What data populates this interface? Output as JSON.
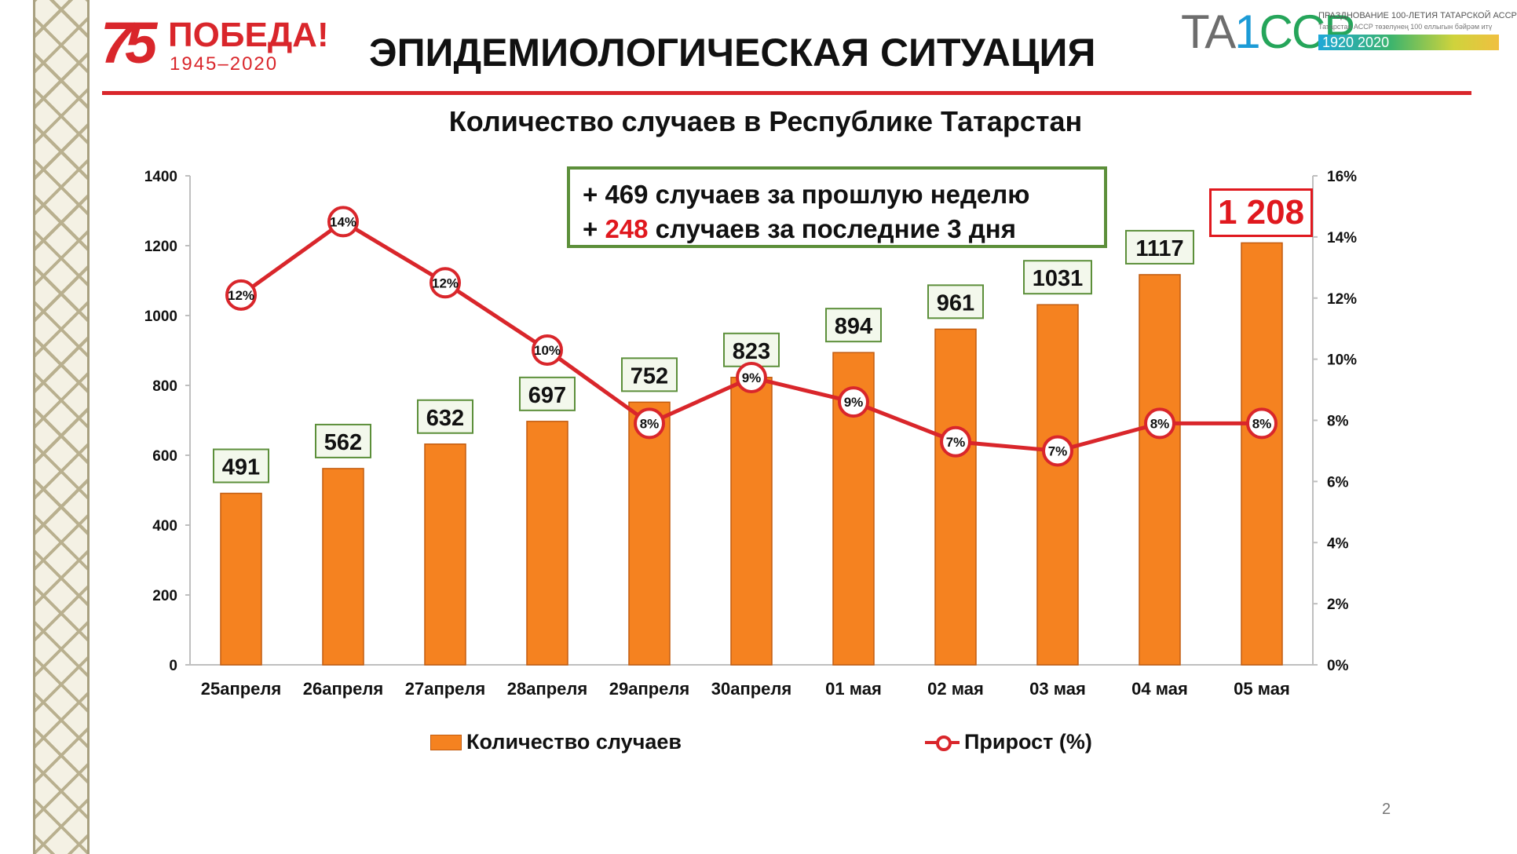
{
  "header": {
    "logo_number": "75",
    "logo_word": "ПОБЕДА!",
    "logo_years": "1945–2020",
    "title": "ЭПИДЕМИОЛОГИЧЕСКАЯ СИТУАЦИЯ",
    "tassr_mark": "TA",
    "tassr_mark_c1": "1",
    "tassr_mark_c2": "CCP",
    "tassr_line1": "ПРАЗДНОВАНИЕ 100-ЛЕТИЯ ТАТАРСКОЙ АССР",
    "tassr_line2": "Татарстан АССР төзелүнең 100 еллыгын бәйрәм итү",
    "tassr_years": "1920 2020"
  },
  "info_box": {
    "line1": "+ 469 случаев  за прошлую неделю",
    "line2_prefix": "+ ",
    "line2_number": "248",
    "line2_suffix": " случаев за последние 3 дня"
  },
  "total_highlight": "1 208",
  "page_number": "2",
  "colors": {
    "bar": "#f58220",
    "line": "#d9262b",
    "accent_red": "#e0181e",
    "label_border": "#5c8f3a"
  },
  "chart_data": {
    "type": "bar",
    "title": "Количество случаев в Республике Татарстан",
    "categories": [
      "25апреля",
      "26апреля",
      "27апреля",
      "28апреля",
      "29апреля",
      "30апреля",
      "01 мая",
      "02 мая",
      "03 мая",
      "04 мая",
      "05 мая"
    ],
    "series": [
      {
        "name": "Количество случаев",
        "type": "bar",
        "axis": "left",
        "values": [
          491,
          562,
          632,
          697,
          752,
          823,
          894,
          961,
          1031,
          1117,
          1208
        ],
        "labels": [
          "491",
          "562",
          "632",
          "697",
          "752",
          "823",
          "894",
          "961",
          "1031",
          "1117",
          ""
        ]
      },
      {
        "name": "Прирост (%)",
        "type": "line",
        "axis": "right",
        "values": [
          12,
          14,
          12,
          10,
          8,
          9,
          9,
          7,
          7,
          8,
          8
        ],
        "labels": [
          "12%",
          "14%",
          "12%",
          "10%",
          "8%",
          "9%",
          "9%",
          "7%",
          "7%",
          "8%",
          "8%"
        ]
      }
    ],
    "y_left": {
      "min": 0,
      "max": 1400,
      "ticks": [
        "0",
        "200",
        "400",
        "600",
        "800",
        "1000",
        "1200",
        "1400"
      ]
    },
    "y_right": {
      "min": 0,
      "max": 16,
      "ticks": [
        "0%",
        "2%",
        "4%",
        "6%",
        "8%",
        "10%",
        "12%",
        "14%",
        "16%"
      ]
    },
    "line_plot_values": [
      12.1,
      14.5,
      12.5,
      10.3,
      7.9,
      9.4,
      8.6,
      7.3,
      7.0,
      7.9,
      7.9
    ],
    "grid": false,
    "legend_position": "bottom"
  }
}
